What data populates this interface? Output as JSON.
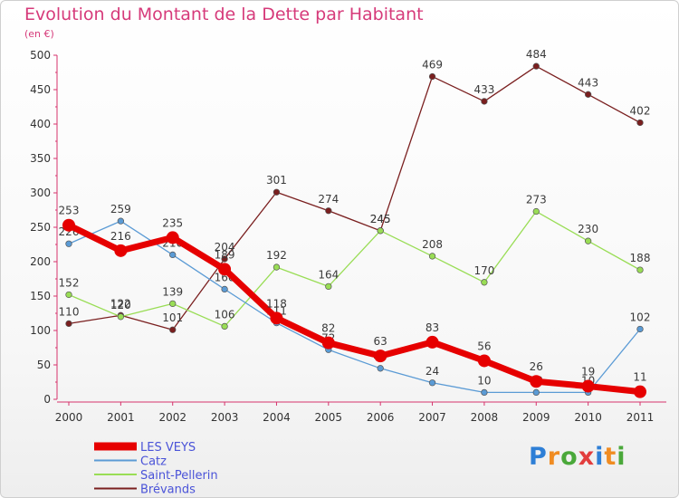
{
  "title": "Evolution du Montant de la Dette par Habitant",
  "subtitle": "(en €)",
  "logo": {
    "text": "Proxiti",
    "letter_colors": [
      "#2e7fd6",
      "#f08c22",
      "#4aa83a",
      "#e23d3d",
      "#2e7fd6",
      "#f08c22",
      "#4aa83a"
    ]
  },
  "chart_data": {
    "type": "line",
    "title": "Evolution du Montant de la Dette par Habitant",
    "subtitle": "(en €)",
    "xlabel": "",
    "ylabel": "",
    "categories": [
      "2000",
      "2001",
      "2002",
      "2003",
      "2004",
      "2005",
      "2006",
      "2007",
      "2008",
      "2009",
      "2010",
      "2011"
    ],
    "ylim": [
      0,
      500
    ],
    "yticks": [
      0,
      50,
      100,
      150,
      200,
      250,
      300,
      350,
      400,
      450,
      500
    ],
    "grid": false,
    "legend_position": "bottom-left",
    "series": [
      {
        "name": "LES VEYS",
        "color": "#e60000",
        "values": [
          253,
          216,
          235,
          189,
          118,
          82,
          63,
          83,
          56,
          26,
          19,
          11
        ]
      },
      {
        "name": "Catz",
        "color": "#5b9bd5",
        "values": [
          226,
          259,
          210,
          160,
          111,
          72,
          45,
          24,
          10,
          10,
          10,
          102
        ]
      },
      {
        "name": "Saint-Pellerin",
        "color": "#99dd55",
        "values": [
          152,
          120,
          139,
          106,
          192,
          164,
          245,
          208,
          170,
          273,
          230,
          188
        ]
      },
      {
        "name": "Brévands",
        "color": "#7a1f1f",
        "values": [
          110,
          122,
          101,
          204,
          301,
          274,
          245,
          469,
          433,
          484,
          443,
          402
        ]
      }
    ]
  }
}
